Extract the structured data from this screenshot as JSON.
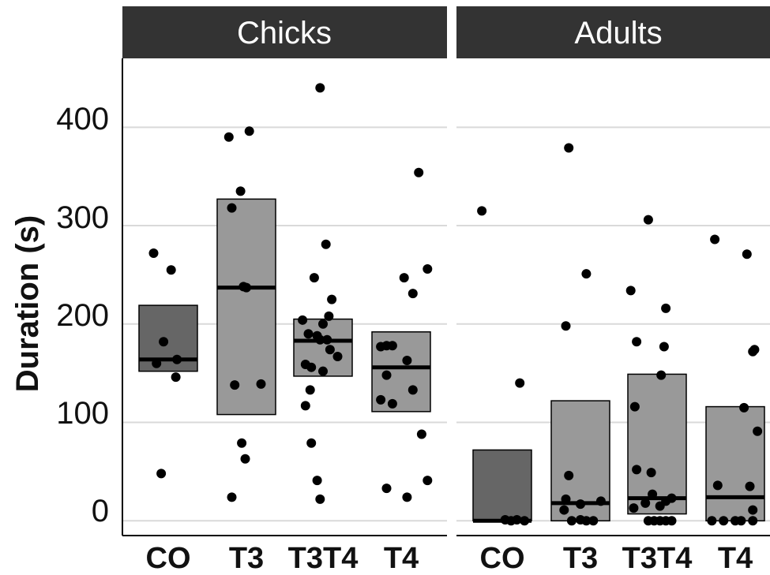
{
  "chart_data": {
    "type": "box",
    "ylabel": "Duration (s)",
    "ylim": [
      -15,
      470
    ],
    "yticks": [
      0,
      100,
      200,
      300,
      400
    ],
    "grid": true,
    "colors": {
      "CO": "#666666",
      "T3": "#999999",
      "T3T4": "#999999",
      "T4": "#999999",
      "strip": "#333333",
      "point": "#000000",
      "median": "#000000",
      "grid": "#d9d9d9"
    },
    "facets": [
      {
        "name": "Chicks",
        "groups": [
          {
            "category": "CO",
            "q1": 152,
            "median": 164,
            "q3": 219,
            "points": [
              [
                -0.25,
                272
              ],
              [
                -0.08,
                182
              ],
              [
                0.05,
                255
              ],
              [
                -0.2,
                160
              ],
              [
                0.15,
                164
              ],
              [
                0.13,
                146
              ],
              [
                -0.12,
                48
              ]
            ]
          },
          {
            "category": "T3",
            "q1": 108,
            "median": 237,
            "q3": 327,
            "points": [
              [
                -0.3,
                390
              ],
              [
                0.05,
                396
              ],
              [
                -0.1,
                335
              ],
              [
                -0.25,
                318
              ],
              [
                -0.05,
                238
              ],
              [
                0.0,
                237
              ],
              [
                -0.2,
                138
              ],
              [
                0.25,
                139
              ],
              [
                -0.08,
                79
              ],
              [
                -0.02,
                63
              ],
              [
                -0.25,
                24
              ]
            ]
          },
          {
            "category": "T3T4",
            "q1": 147,
            "median": 183,
            "q3": 205,
            "points": [
              [
                -0.05,
                440
              ],
              [
                0.05,
                281
              ],
              [
                -0.15,
                247
              ],
              [
                -0.35,
                204
              ],
              [
                0.1,
                208
              ],
              [
                0.0,
                200
              ],
              [
                0.15,
                225
              ],
              [
                -0.25,
                190
              ],
              [
                -0.1,
                188
              ],
              [
                -0.05,
                184
              ],
              [
                0.07,
                184
              ],
              [
                0.12,
                174
              ],
              [
                0.25,
                167
              ],
              [
                -0.3,
                159
              ],
              [
                -0.2,
                156
              ],
              [
                0.0,
                152
              ],
              [
                -0.22,
                133
              ],
              [
                -0.3,
                117
              ],
              [
                -0.2,
                79
              ],
              [
                -0.1,
                41
              ],
              [
                -0.05,
                22
              ]
            ]
          },
          {
            "category": "T4",
            "q1": 111,
            "median": 156,
            "q3": 192,
            "points": [
              [
                0.05,
                247
              ],
              [
                0.3,
                354
              ],
              [
                0.45,
                256
              ],
              [
                0.2,
                231
              ],
              [
                -0.35,
                177
              ],
              [
                -0.25,
                178
              ],
              [
                -0.15,
                178
              ],
              [
                0.1,
                163
              ],
              [
                -0.25,
                148
              ],
              [
                -0.35,
                123
              ],
              [
                -0.15,
                119
              ],
              [
                0.2,
                133
              ],
              [
                0.35,
                88
              ],
              [
                0.45,
                41
              ],
              [
                -0.25,
                33
              ],
              [
                0.1,
                24
              ]
            ]
          }
        ]
      },
      {
        "name": "Adults",
        "groups": [
          {
            "category": "CO",
            "q1": 0,
            "median": 0,
            "q3": 72,
            "points": [
              [
                -0.35,
                315
              ],
              [
                0.3,
                140
              ],
              [
                0.05,
                1
              ],
              [
                0.15,
                0
              ],
              [
                0.25,
                1
              ],
              [
                0.38,
                0
              ]
            ]
          },
          {
            "category": "T3",
            "q1": 0,
            "median": 18,
            "q3": 122,
            "points": [
              [
                -0.2,
                379
              ],
              [
                0.1,
                251
              ],
              [
                -0.25,
                198
              ],
              [
                -0.2,
                46
              ],
              [
                -0.28,
                11
              ],
              [
                -0.25,
                22
              ],
              [
                -0.15,
                0
              ],
              [
                0.0,
                1
              ],
              [
                0.1,
                0
              ],
              [
                0.22,
                0
              ],
              [
                0.35,
                20
              ],
              [
                0.0,
                17
              ]
            ]
          },
          {
            "category": "T3T4",
            "q1": 7,
            "median": 23,
            "q3": 149,
            "points": [
              [
                -0.15,
                306
              ],
              [
                -0.45,
                234
              ],
              [
                0.15,
                216
              ],
              [
                -0.35,
                182
              ],
              [
                0.12,
                177
              ],
              [
                0.07,
                148
              ],
              [
                -0.38,
                116
              ],
              [
                -0.35,
                52
              ],
              [
                -0.1,
                49
              ],
              [
                -0.4,
                13
              ],
              [
                -0.2,
                18
              ],
              [
                -0.08,
                27
              ],
              [
                0.05,
                15
              ],
              [
                0.15,
                20
              ],
              [
                0.25,
                23
              ],
              [
                -0.15,
                0
              ],
              [
                -0.05,
                0
              ],
              [
                0.05,
                0
              ],
              [
                0.15,
                0
              ],
              [
                0.25,
                0
              ]
            ]
          },
          {
            "category": "T4",
            "q1": 0,
            "median": 24,
            "q3": 116,
            "points": [
              [
                -0.35,
                286
              ],
              [
                0.2,
                271
              ],
              [
                0.3,
                172
              ],
              [
                0.33,
                174
              ],
              [
                0.15,
                115
              ],
              [
                0.38,
                91
              ],
              [
                -0.3,
                36
              ],
              [
                0.25,
                35
              ],
              [
                0.3,
                11
              ],
              [
                -0.4,
                0
              ],
              [
                -0.2,
                0
              ],
              [
                0.1,
                0
              ],
              [
                0.3,
                0
              ],
              [
                0.0,
                0
              ]
            ]
          }
        ]
      }
    ]
  }
}
